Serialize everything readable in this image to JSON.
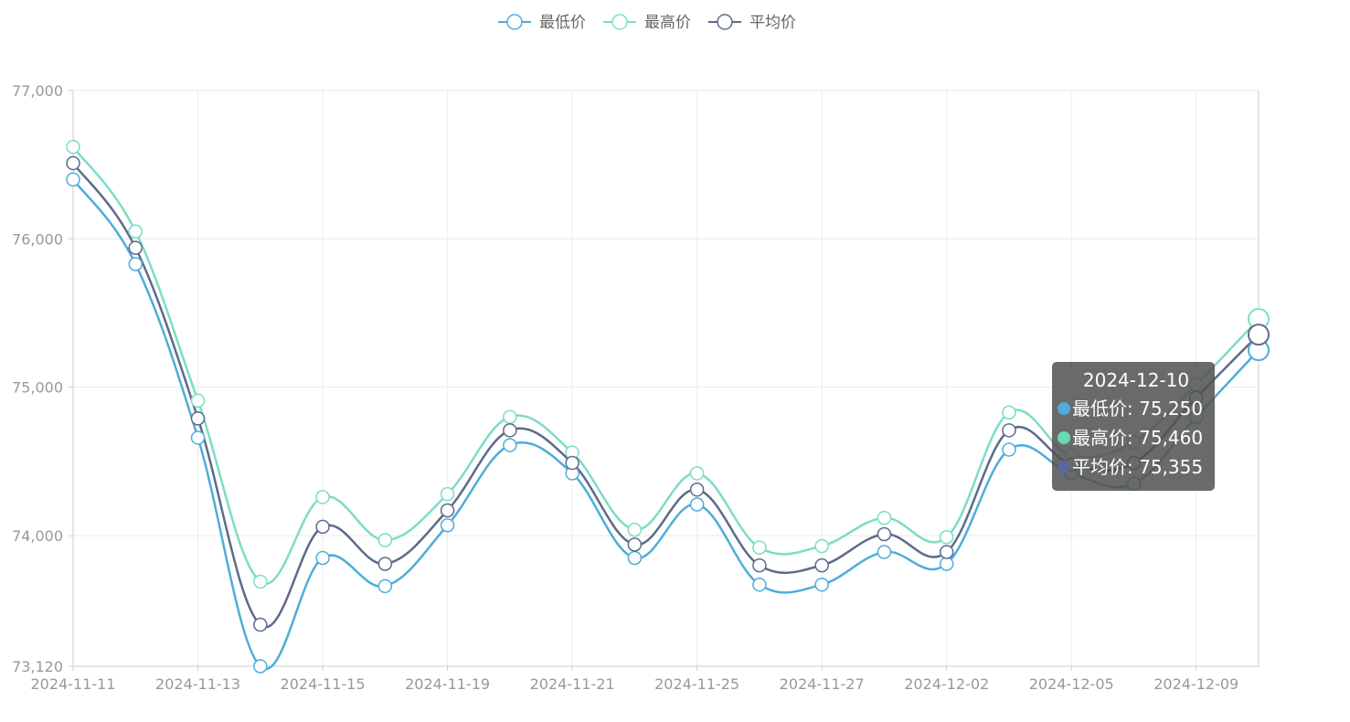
{
  "chart_data": {
    "type": "line",
    "title": "",
    "xlabel": "",
    "ylabel": "",
    "ylim": [
      73120,
      77000
    ],
    "y_ticks": [
      "73,120",
      "74,000",
      "75,000",
      "76,000",
      "77,000"
    ],
    "y_tick_values": [
      73120,
      74000,
      75000,
      76000,
      77000
    ],
    "x": [
      "2024-11-11",
      "2024-11-12",
      "2024-11-13",
      "2024-11-14",
      "2024-11-15",
      "2024-11-18",
      "2024-11-19",
      "2024-11-20",
      "2024-11-21",
      "2024-11-22",
      "2024-11-25",
      "2024-11-26",
      "2024-11-27",
      "2024-11-28",
      "2024-12-02",
      "2024-12-03",
      "2024-12-05",
      "2024-12-06",
      "2024-12-09",
      "2024-12-10"
    ],
    "x_tick_labels": [
      "2024-11-11",
      "2024-11-13",
      "2024-11-15",
      "2024-11-19",
      "2024-11-21",
      "2024-11-25",
      "2024-11-27",
      "2024-12-02",
      "2024-12-05",
      "2024-12-09"
    ],
    "x_tick_indices": [
      0,
      2,
      4,
      6,
      8,
      10,
      12,
      14,
      16,
      18
    ],
    "smooth": true,
    "grid": true,
    "legend_position": "top-center",
    "series": [
      {
        "name": "最低价",
        "color": "#4eadd9",
        "values": [
          76400,
          75830,
          74660,
          73120,
          73850,
          73660,
          74070,
          74610,
          74420,
          73850,
          74210,
          73670,
          73670,
          73890,
          73810,
          74580,
          74420,
          74350,
          74800,
          75250
        ]
      },
      {
        "name": "最高价",
        "color": "#7dddc3",
        "values": [
          76620,
          76050,
          74910,
          73690,
          74260,
          73970,
          74280,
          74800,
          74560,
          74040,
          74420,
          73920,
          73930,
          74120,
          73990,
          74830,
          74540,
          74630,
          75020,
          75460
        ]
      },
      {
        "name": "平均价",
        "color": "#5d6a8c",
        "values": [
          76510,
          75940,
          74790,
          73400,
          74060,
          73810,
          74170,
          74710,
          74490,
          73940,
          74310,
          73800,
          73800,
          74010,
          73890,
          74710,
          74480,
          74490,
          74930,
          75355
        ]
      }
    ]
  },
  "tooltip": {
    "title": "2024-12-10",
    "rows": [
      {
        "label": "最低价: 75,250",
        "color": "#4eadd9"
      },
      {
        "label": "最高价: 75,460",
        "color": "#6ad8b6"
      },
      {
        "label": "平均价: 75,355",
        "color": "#5b6699"
      }
    ]
  }
}
